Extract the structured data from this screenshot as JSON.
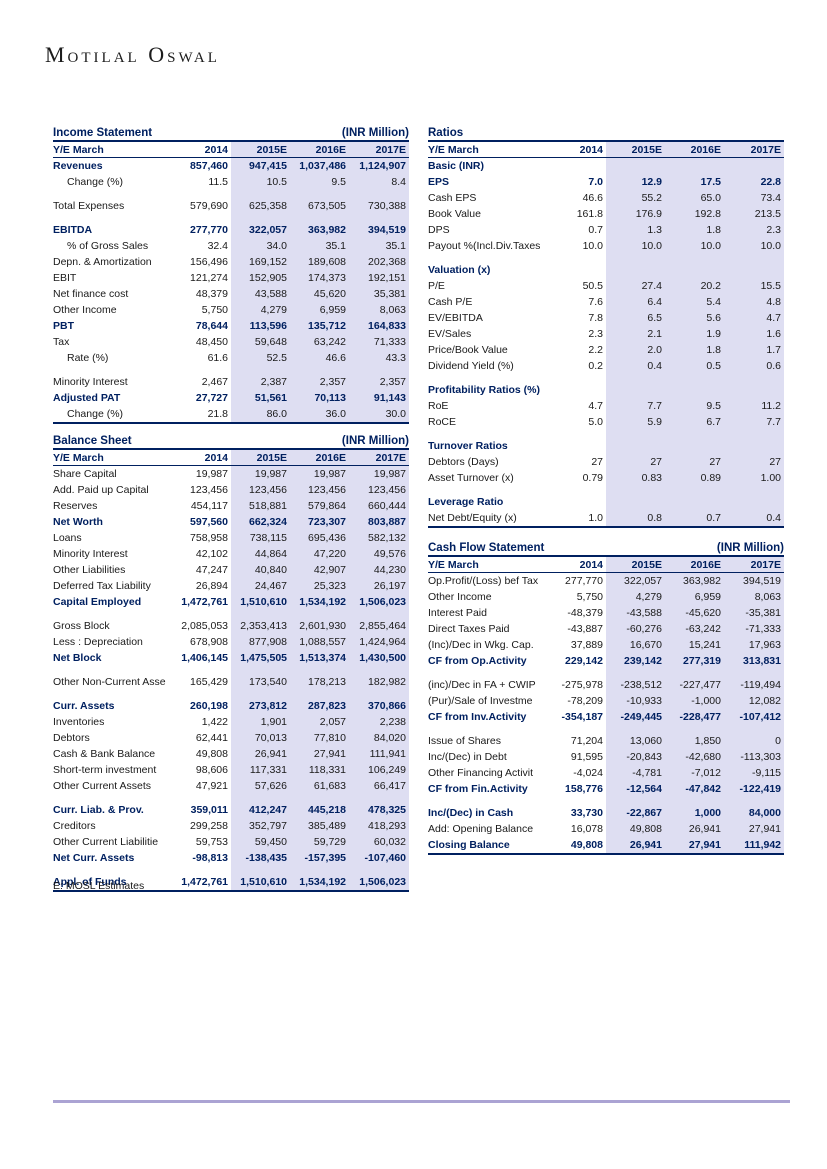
{
  "page": {
    "logo": "Motilal Oswal",
    "footnote": "E: MOSL Estimates"
  },
  "columns": [
    "2014",
    "2015E",
    "2016E",
    "2017E"
  ],
  "header_label": "Y/E March",
  "tables": {
    "income_statement": {
      "title": "Income Statement",
      "unit": "(INR Million)",
      "rows": [
        {
          "label": "Revenues",
          "values": [
            "857,460",
            "947,415",
            "1,037,486",
            "1,124,907"
          ],
          "style": "bold"
        },
        {
          "label": "Change (%)",
          "values": [
            "11.5",
            "10.5",
            "9.5",
            "8.4"
          ],
          "indent": true
        },
        {
          "style": "spacer"
        },
        {
          "label": "Total Expenses",
          "values": [
            "579,690",
            "625,358",
            "673,505",
            "730,388"
          ]
        },
        {
          "style": "spacer"
        },
        {
          "label": "EBITDA",
          "values": [
            "277,770",
            "322,057",
            "363,982",
            "394,519"
          ],
          "style": "bold"
        },
        {
          "label": "% of Gross Sales",
          "values": [
            "32.4",
            "34.0",
            "35.1",
            "35.1"
          ],
          "indent": true
        },
        {
          "label": "Depn. & Amortization",
          "values": [
            "156,496",
            "169,152",
            "189,608",
            "202,368"
          ]
        },
        {
          "label": "EBIT",
          "values": [
            "121,274",
            "152,905",
            "174,373",
            "192,151"
          ]
        },
        {
          "label": "Net finance cost",
          "values": [
            "48,379",
            "43,588",
            "45,620",
            "35,381"
          ]
        },
        {
          "label": "Other Income",
          "values": [
            "5,750",
            "4,279",
            "6,959",
            "8,063"
          ]
        },
        {
          "label": "PBT",
          "values": [
            "78,644",
            "113,596",
            "135,712",
            "164,833"
          ],
          "style": "bold"
        },
        {
          "label": "Tax",
          "values": [
            "48,450",
            "59,648",
            "63,242",
            "71,333"
          ]
        },
        {
          "label": "Rate (%)",
          "values": [
            "61.6",
            "52.5",
            "46.6",
            "43.3"
          ],
          "indent": true
        },
        {
          "style": "spacer"
        },
        {
          "label": "Minority Interest",
          "values": [
            "2,467",
            "2,387",
            "2,357",
            "2,357"
          ]
        },
        {
          "label": "Adjusted PAT",
          "values": [
            "27,727",
            "51,561",
            "70,113",
            "91,143"
          ],
          "style": "bold"
        },
        {
          "label": "Change (%)",
          "values": [
            "21.8",
            "86.0",
            "36.0",
            "30.0"
          ],
          "indent": true
        }
      ]
    },
    "balance_sheet": {
      "title": "Balance Sheet",
      "unit": "(INR Million)",
      "rows": [
        {
          "label": "Share Capital",
          "values": [
            "19,987",
            "19,987",
            "19,987",
            "19,987"
          ]
        },
        {
          "label": "Add. Paid up Capital",
          "values": [
            "123,456",
            "123,456",
            "123,456",
            "123,456"
          ]
        },
        {
          "label": "Reserves",
          "values": [
            "454,117",
            "518,881",
            "579,864",
            "660,444"
          ]
        },
        {
          "label": "Net Worth",
          "values": [
            "597,560",
            "662,324",
            "723,307",
            "803,887"
          ],
          "style": "bold"
        },
        {
          "label": "Loans",
          "values": [
            "758,958",
            "738,115",
            "695,436",
            "582,132"
          ]
        },
        {
          "label": "Minority Interest",
          "values": [
            "42,102",
            "44,864",
            "47,220",
            "49,576"
          ]
        },
        {
          "label": "Other Liabilities",
          "values": [
            "47,247",
            "40,840",
            "42,907",
            "44,230"
          ]
        },
        {
          "label": "Deferred Tax Liability",
          "values": [
            "26,894",
            "24,467",
            "25,323",
            "26,197"
          ]
        },
        {
          "label": "Capital Employed",
          "values": [
            "1,472,761",
            "1,510,610",
            "1,534,192",
            "1,506,023"
          ],
          "style": "bold"
        },
        {
          "style": "spacer"
        },
        {
          "label": "Gross Block",
          "values": [
            "2,085,053",
            "2,353,413",
            "2,601,930",
            "2,855,464"
          ]
        },
        {
          "label": "Less : Depreciation",
          "values": [
            "678,908",
            "877,908",
            "1,088,557",
            "1,424,964"
          ]
        },
        {
          "label": "Net Block",
          "values": [
            "1,406,145",
            "1,475,505",
            "1,513,374",
            "1,430,500"
          ],
          "style": "bold"
        },
        {
          "style": "spacer"
        },
        {
          "label": "Other Non-Current Asse",
          "values": [
            "165,429",
            "173,540",
            "178,213",
            "182,982"
          ]
        },
        {
          "style": "spacer"
        },
        {
          "label": "Curr. Assets",
          "values": [
            "260,198",
            "273,812",
            "287,823",
            "370,866"
          ],
          "style": "bold"
        },
        {
          "label": "Inventories",
          "values": [
            "1,422",
            "1,901",
            "2,057",
            "2,238"
          ]
        },
        {
          "label": "Debtors",
          "values": [
            "62,441",
            "70,013",
            "77,810",
            "84,020"
          ]
        },
        {
          "label": "Cash & Bank Balance",
          "values": [
            "49,808",
            "26,941",
            "27,941",
            "111,941"
          ]
        },
        {
          "label": "Short-term investment",
          "values": [
            "98,606",
            "117,331",
            "118,331",
            "106,249"
          ]
        },
        {
          "label": "Other Current Assets",
          "values": [
            "47,921",
            "57,626",
            "61,683",
            "66,417"
          ]
        },
        {
          "style": "spacer"
        },
        {
          "label": "Curr. Liab. & Prov.",
          "values": [
            "359,011",
            "412,247",
            "445,218",
            "478,325"
          ],
          "style": "bold"
        },
        {
          "label": "Creditors",
          "values": [
            "299,258",
            "352,797",
            "385,489",
            "418,293"
          ]
        },
        {
          "label": "Other Current Liabilitie",
          "values": [
            "59,753",
            "59,450",
            "59,729",
            "60,032"
          ]
        },
        {
          "label": "Net Curr.  Assets",
          "values": [
            "-98,813",
            "-138,435",
            "-157,395",
            "-107,460"
          ],
          "style": "bold"
        },
        {
          "style": "spacer"
        },
        {
          "label": "Appl. of Funds",
          "values": [
            "1,472,761",
            "1,510,610",
            "1,534,192",
            "1,506,023"
          ],
          "style": "bold"
        }
      ]
    },
    "ratios": {
      "title": "Ratios",
      "unit": "",
      "rows": [
        {
          "label": "Basic (INR)",
          "values": [
            "",
            "",
            "",
            ""
          ],
          "style": "section"
        },
        {
          "label": "EPS",
          "values": [
            "7.0",
            "12.9",
            "17.5",
            "22.8"
          ],
          "style": "bold"
        },
        {
          "label": "Cash EPS",
          "values": [
            "46.6",
            "55.2",
            "65.0",
            "73.4"
          ]
        },
        {
          "label": "Book Value",
          "values": [
            "161.8",
            "176.9",
            "192.8",
            "213.5"
          ]
        },
        {
          "label": "DPS",
          "values": [
            "0.7",
            "1.3",
            "1.8",
            "2.3"
          ]
        },
        {
          "label": "Payout %(Incl.Div.Taxes",
          "values": [
            "10.0",
            "10.0",
            "10.0",
            "10.0"
          ]
        },
        {
          "style": "spacer"
        },
        {
          "label": "Valuation (x)",
          "values": [
            "",
            "",
            "",
            ""
          ],
          "style": "section"
        },
        {
          "label": "P/E",
          "values": [
            "50.5",
            "27.4",
            "20.2",
            "15.5"
          ]
        },
        {
          "label": "Cash P/E",
          "values": [
            "7.6",
            "6.4",
            "5.4",
            "4.8"
          ]
        },
        {
          "label": "EV/EBITDA",
          "values": [
            "7.8",
            "6.5",
            "5.6",
            "4.7"
          ]
        },
        {
          "label": "EV/Sales",
          "values": [
            "2.3",
            "2.1",
            "1.9",
            "1.6"
          ]
        },
        {
          "label": "Price/Book Value",
          "values": [
            "2.2",
            "2.0",
            "1.8",
            "1.7"
          ]
        },
        {
          "label": "Dividend Yield (%)",
          "values": [
            "0.2",
            "0.4",
            "0.5",
            "0.6"
          ]
        },
        {
          "style": "spacer"
        },
        {
          "label": "Profitability Ratios (%)",
          "values": [
            "",
            "",
            "",
            ""
          ],
          "style": "section"
        },
        {
          "label": "RoE",
          "values": [
            "4.7",
            "7.7",
            "9.5",
            "11.2"
          ]
        },
        {
          "label": "RoCE",
          "values": [
            "5.0",
            "5.9",
            "6.7",
            "7.7"
          ]
        },
        {
          "style": "spacer"
        },
        {
          "label": "Turnover Ratios",
          "values": [
            "",
            "",
            "",
            ""
          ],
          "style": "section"
        },
        {
          "label": "Debtors (Days)",
          "values": [
            "27",
            "27",
            "27",
            "27"
          ]
        },
        {
          "label": "Asset Turnover (x)",
          "values": [
            "0.79",
            "0.83",
            "0.89",
            "1.00"
          ]
        },
        {
          "style": "spacer"
        },
        {
          "label": "Leverage Ratio",
          "values": [
            "",
            "",
            "",
            ""
          ],
          "style": "section"
        },
        {
          "label": "Net Debt/Equity (x)",
          "values": [
            "1.0",
            "0.8",
            "0.7",
            "0.4"
          ]
        }
      ]
    },
    "cash_flow": {
      "title": "Cash Flow Statement",
      "unit": "(INR Million)",
      "rows": [
        {
          "label": "Op.Profit/(Loss) bef Tax",
          "values": [
            "277,770",
            "322,057",
            "363,982",
            "394,519"
          ]
        },
        {
          "label": "Other Income",
          "values": [
            "5,750",
            "4,279",
            "6,959",
            "8,063"
          ]
        },
        {
          "label": "Interest Paid",
          "values": [
            "-48,379",
            "-43,588",
            "-45,620",
            "-35,381"
          ]
        },
        {
          "label": "Direct Taxes Paid",
          "values": [
            "-43,887",
            "-60,276",
            "-63,242",
            "-71,333"
          ]
        },
        {
          "label": "(Inc)/Dec in Wkg. Cap.",
          "values": [
            "37,889",
            "16,670",
            "15,241",
            "17,963"
          ]
        },
        {
          "label": "CF from Op.Activity",
          "values": [
            "229,142",
            "239,142",
            "277,319",
            "313,831"
          ],
          "style": "bold"
        },
        {
          "style": "spacer"
        },
        {
          "label": "(inc)/Dec in FA + CWIP",
          "values": [
            "-275,978",
            "-238,512",
            "-227,477",
            "-119,494"
          ]
        },
        {
          "label": "(Pur)/Sale of Investme",
          "values": [
            "-78,209",
            "-10,933",
            "-1,000",
            "12,082"
          ]
        },
        {
          "label": "CF from Inv.Activity",
          "values": [
            "-354,187",
            "-249,445",
            "-228,477",
            "-107,412"
          ],
          "style": "bold"
        },
        {
          "style": "spacer"
        },
        {
          "label": "Issue of Shares",
          "values": [
            "71,204",
            "13,060",
            "1,850",
            "0"
          ]
        },
        {
          "label": "Inc/(Dec) in Debt",
          "values": [
            "91,595",
            "-20,843",
            "-42,680",
            "-113,303"
          ]
        },
        {
          "label": "Other Financing Activit",
          "values": [
            "-4,024",
            "-4,781",
            "-7,012",
            "-9,115"
          ]
        },
        {
          "label": "CF from Fin.Activity",
          "values": [
            "158,776",
            "-12,564",
            "-47,842",
            "-122,419"
          ],
          "style": "bold"
        },
        {
          "style": "spacer"
        },
        {
          "label": "Inc/(Dec) in Cash",
          "values": [
            "33,730",
            "-22,867",
            "1,000",
            "84,000"
          ],
          "style": "bold"
        },
        {
          "label": "Add: Opening Balance",
          "values": [
            "16,078",
            "49,808",
            "26,941",
            "27,941"
          ]
        },
        {
          "label": "Closing Balance",
          "values": [
            "49,808",
            "26,941",
            "27,941",
            "111,942"
          ],
          "style": "bold"
        }
      ]
    }
  }
}
